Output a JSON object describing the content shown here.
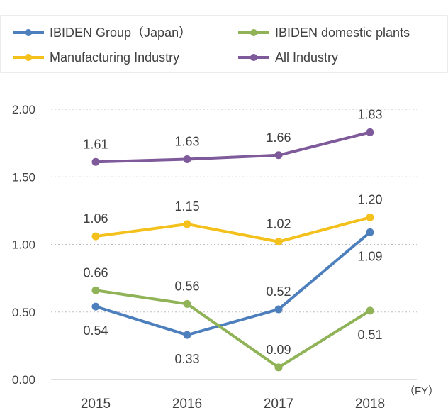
{
  "chart_data": {
    "type": "line",
    "title": "",
    "xlabel": "（FY）",
    "ylabel": "",
    "categories": [
      "2015",
      "2016",
      "2017",
      "2018"
    ],
    "ylim": [
      0,
      2.0
    ],
    "yticks": [
      "0.00",
      "0.50",
      "1.00",
      "1.50",
      "2.00"
    ],
    "grid": true,
    "legend_position": "top",
    "series": [
      {
        "name": "IBIDEN Group（Japan）",
        "color": "#4e7fbd",
        "values": [
          0.54,
          0.33,
          0.52,
          1.09
        ],
        "labels": [
          "0.54",
          "0.33",
          "0.52",
          "1.09"
        ],
        "label_positions": [
          "below",
          "below",
          "above",
          "below"
        ]
      },
      {
        "name": "IBIDEN domestic plants",
        "color": "#8fb356",
        "values": [
          0.66,
          0.56,
          0.09,
          0.51
        ],
        "labels": [
          "0.66",
          "0.56",
          "0.09",
          "0.51"
        ],
        "label_positions": [
          "above",
          "above",
          "above",
          "below"
        ]
      },
      {
        "name": "Manufacturing Industry",
        "color": "#f4c01c",
        "values": [
          1.06,
          1.15,
          1.02,
          1.2
        ],
        "labels": [
          "1.06",
          "1.15",
          "1.02",
          "1.20"
        ],
        "label_positions": [
          "above",
          "above",
          "above",
          "above"
        ]
      },
      {
        "name": "All Industry",
        "color": "#7e5a9b",
        "values": [
          1.61,
          1.63,
          1.66,
          1.83
        ],
        "labels": [
          "1.61",
          "1.63",
          "1.66",
          "1.83"
        ],
        "label_positions": [
          "above",
          "above",
          "above",
          "above"
        ]
      }
    ]
  }
}
